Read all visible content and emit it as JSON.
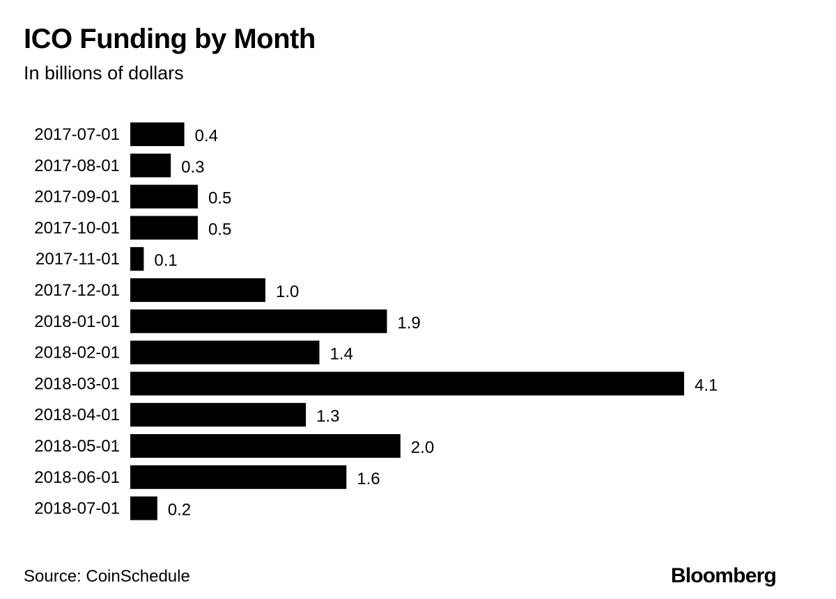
{
  "header": {
    "title": "ICO Funding by Month",
    "subtitle": "In billions of dollars"
  },
  "footer": {
    "source": "Source: CoinSchedule",
    "brand": "Bloomberg"
  },
  "chart_data": {
    "type": "bar",
    "orientation": "horizontal",
    "title": "ICO Funding by Month",
    "subtitle": "In billions of dollars",
    "categories": [
      "2017-07-01",
      "2017-08-01",
      "2017-09-01",
      "2017-10-01",
      "2017-11-01",
      "2017-12-01",
      "2018-01-01",
      "2018-02-01",
      "2018-03-01",
      "2018-04-01",
      "2018-05-01",
      "2018-06-01",
      "2018-07-01"
    ],
    "values": [
      0.4,
      0.3,
      0.5,
      0.5,
      0.1,
      1.0,
      1.9,
      1.4,
      4.1,
      1.3,
      2.0,
      1.6,
      0.2
    ],
    "value_labels": [
      "0.4",
      "0.3",
      "0.5",
      "0.5",
      "0.1",
      "1.0",
      "1.9",
      "1.4",
      "4.1",
      "1.3",
      "2.0",
      "1.6",
      "0.2"
    ],
    "xlim": [
      0,
      4.1
    ],
    "grid": false,
    "bar_color": "#000000"
  }
}
